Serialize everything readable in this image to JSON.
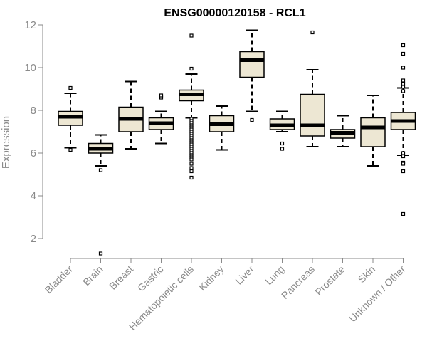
{
  "chart_data": {
    "type": "boxplot",
    "title": "ENSG00000120158 - RCL1",
    "xlabel": "",
    "ylabel": "Expression",
    "ylim": [
      1,
      12
    ],
    "yticks": [
      2,
      4,
      6,
      8,
      10,
      12
    ],
    "grid": false,
    "legend": "none",
    "box_fill": "#ede7d3",
    "stroke": "#000000",
    "categories": [
      "Bladder",
      "Brain",
      "Breast",
      "Gastric",
      "Hematopoietic cells",
      "Kidney",
      "Liver",
      "Lung",
      "Pancreas",
      "Prostate",
      "Skin",
      "Unknown / Other"
    ],
    "boxes": [
      {
        "min": 6.25,
        "q1": 7.3,
        "median": 7.7,
        "q3": 7.95,
        "max": 8.8,
        "outliers": [
          9.05,
          6.15
        ]
      },
      {
        "min": 5.4,
        "q1": 6.0,
        "median": 6.2,
        "q3": 6.45,
        "max": 6.85,
        "outliers": [
          5.2,
          1.3
        ]
      },
      {
        "min": 6.2,
        "q1": 7.0,
        "median": 7.6,
        "q3": 8.15,
        "max": 9.35,
        "outliers": []
      },
      {
        "min": 6.45,
        "q1": 7.1,
        "median": 7.4,
        "q3": 7.65,
        "max": 7.95,
        "outliers": [
          8.6,
          8.7
        ]
      },
      {
        "min": 7.65,
        "q1": 8.45,
        "median": 8.75,
        "q3": 8.95,
        "max": 9.7,
        "outliers": [
          11.5,
          9.95,
          7.6,
          7.5,
          7.4,
          7.3,
          7.2,
          7.1,
          7.0,
          6.9,
          6.8,
          6.7,
          6.6,
          6.5,
          6.4,
          6.3,
          6.2,
          6.1,
          6.0,
          5.9,
          5.8,
          5.7,
          5.5,
          5.3,
          5.15,
          4.85
        ]
      },
      {
        "min": 6.15,
        "q1": 7.0,
        "median": 7.35,
        "q3": 7.75,
        "max": 8.2,
        "outliers": []
      },
      {
        "min": 7.95,
        "q1": 9.55,
        "median": 10.35,
        "q3": 10.75,
        "max": 11.75,
        "outliers": [
          7.55
        ]
      },
      {
        "min": 7.0,
        "q1": 7.1,
        "median": 7.3,
        "q3": 7.6,
        "max": 7.95,
        "outliers": [
          6.45,
          6.2
        ]
      },
      {
        "min": 6.3,
        "q1": 6.8,
        "median": 7.3,
        "q3": 8.75,
        "max": 9.9,
        "outliers": [
          11.65
        ]
      },
      {
        "min": 6.3,
        "q1": 6.7,
        "median": 6.95,
        "q3": 7.1,
        "max": 7.75,
        "outliers": []
      },
      {
        "min": 5.4,
        "q1": 6.3,
        "median": 7.2,
        "q3": 7.65,
        "max": 8.7,
        "outliers": []
      },
      {
        "min": 5.9,
        "q1": 7.1,
        "median": 7.5,
        "q3": 7.9,
        "max": 9.05,
        "outliers": [
          11.05,
          10.65,
          10.0,
          9.4,
          9.25,
          9.1,
          8.9,
          6.0,
          5.85,
          5.55,
          5.5,
          5.15,
          3.15
        ]
      }
    ]
  }
}
